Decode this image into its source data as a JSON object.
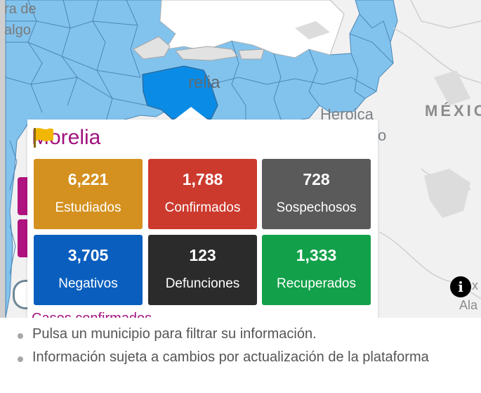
{
  "map": {
    "labels": {
      "edge_top": "ra de",
      "edge_second": "algo",
      "city_morelia": "relia",
      "city_heroica": "Heroica",
      "partial_o": "o",
      "country": "MÉXIC",
      "right_partial_1": "x",
      "right_partial_2": "Ala"
    },
    "colors": {
      "municipality_fill": "#82c3ee",
      "selected_fill": "#0a8ce6",
      "border": "#4c86b4",
      "background": "#f1f1f1"
    }
  },
  "popup": {
    "icon": "flag-icon",
    "title": "Morelia",
    "stats": [
      {
        "value": "6,221",
        "label": "Estudiados",
        "color": "#d4911f"
      },
      {
        "value": "1,788",
        "label": "Confirmados",
        "color": "#cc3a2e"
      },
      {
        "value": "728",
        "label": "Sospechosos",
        "color": "#5a5a5a"
      },
      {
        "value": "3,705",
        "label": "Negativos",
        "color": "#0a5fbe"
      },
      {
        "value": "123",
        "label": "Defunciones",
        "color": "#2b2b2b"
      },
      {
        "value": "1,333",
        "label": "Recuperados",
        "color": "#12a14a"
      }
    ],
    "link": "Casos confirmados"
  },
  "controls": {
    "info_icon": "info-icon",
    "info_glyph": "i"
  },
  "notes": [
    "Pulsa un municipio para filtrar su información.",
    "Información sujeta a cambios por actualización de la plataforma"
  ]
}
